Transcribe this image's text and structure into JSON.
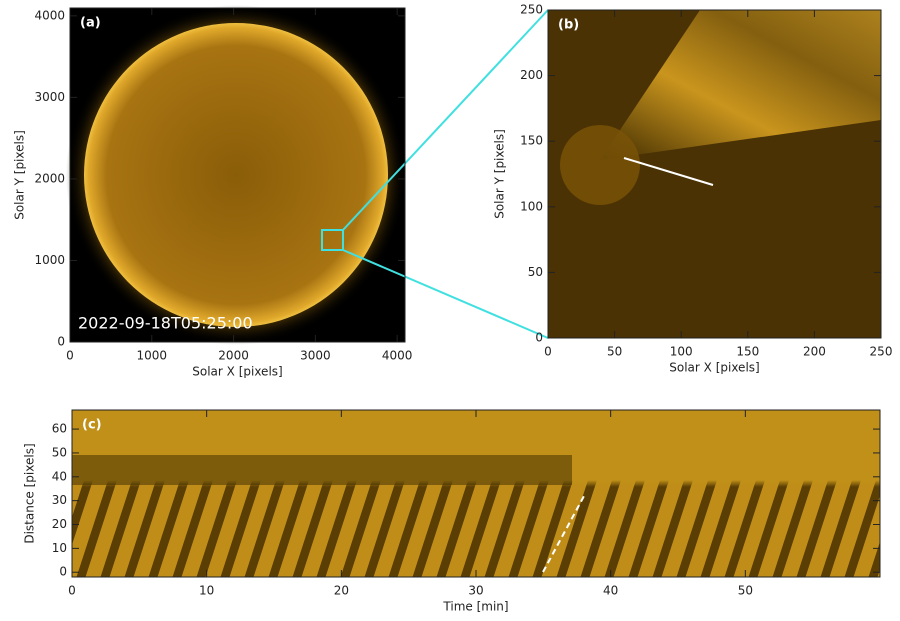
{
  "chart_data": [
    {
      "type": "image",
      "label": "(a)",
      "annotation": "2022-09-18T05:25:00",
      "xlabel": "Solar X [pixels]",
      "ylabel": "Solar Y [pixels]",
      "xlim": [
        0,
        4096
      ],
      "ylim": [
        0,
        4096
      ],
      "xticks": [
        0,
        1000,
        2000,
        3000,
        4000
      ],
      "yticks": [
        0,
        1000,
        2000,
        3000,
        4000
      ]
    },
    {
      "type": "image",
      "label": "(b)",
      "xlabel": "Solar X [pixels]",
      "ylabel": "Solar Y [pixels]",
      "xlim": [
        0,
        250
      ],
      "ylim": [
        0,
        250
      ],
      "xticks": [
        0,
        50,
        100,
        150,
        200,
        250
      ],
      "yticks": [
        0,
        50,
        100,
        150,
        200,
        250
      ]
    },
    {
      "type": "image",
      "label": "(c)",
      "xlabel": "Time [min]",
      "ylabel": "Distance [pixels]",
      "xlim": [
        0,
        60
      ],
      "ylim": [
        -2,
        68
      ],
      "xticks": [
        0,
        10,
        20,
        30,
        40,
        50
      ],
      "yticks": [
        0,
        10,
        20,
        30,
        40,
        50,
        60
      ]
    }
  ]
}
